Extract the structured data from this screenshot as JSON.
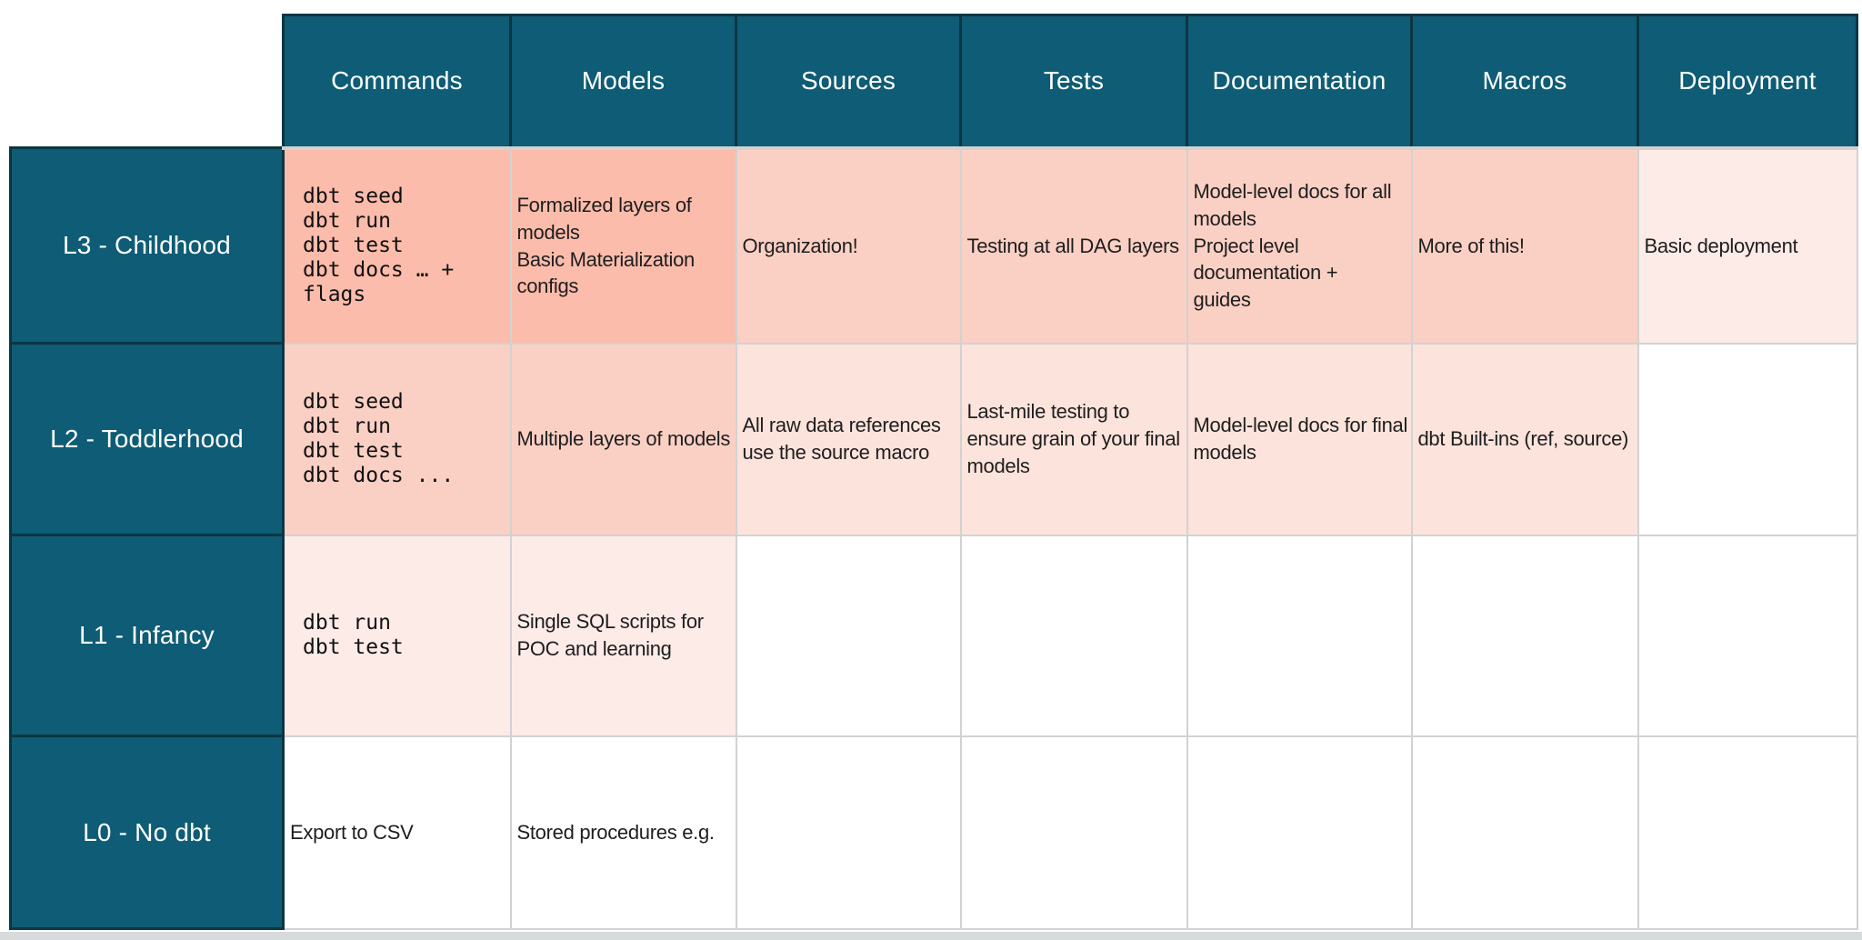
{
  "colors": {
    "teal": "#0e5c75",
    "teal_border": "#0b3642",
    "grid_line": "#d2d2d2",
    "pink_1": "#fbbcab",
    "pink_2": "#fbd0c4",
    "pink_3": "#fce3dc",
    "pink_4": "#fdebe7",
    "white": "#ffffff",
    "header_text": "#ffffff",
    "cell_text": "#1e1e1e"
  },
  "table": {
    "columns": [
      {
        "id": "commands",
        "label": "Commands"
      },
      {
        "id": "models",
        "label": "Models"
      },
      {
        "id": "sources",
        "label": "Sources"
      },
      {
        "id": "tests",
        "label": "Tests"
      },
      {
        "id": "documentation",
        "label": "Documentation"
      },
      {
        "id": "macros",
        "label": "Macros"
      },
      {
        "id": "deployment",
        "label": "Deployment"
      }
    ],
    "rows": [
      {
        "id": "l3",
        "label": "L3 - Childhood",
        "cells": [
          {
            "text": "dbt seed\ndbt run\ndbt test\ndbt docs … +\nflags",
            "mono": true,
            "tone": "pink_1"
          },
          {
            "text": "Formalized layers of\nmodels\nBasic Materialization\nconfigs",
            "mono": false,
            "tone": "pink_1"
          },
          {
            "text": "Organization!",
            "mono": false,
            "tone": "pink_2"
          },
          {
            "text": "Testing at all DAG layers",
            "mono": false,
            "tone": "pink_2"
          },
          {
            "text": "Model-level docs for all\nmodels\nProject level\ndocumentation +\nguides",
            "mono": false,
            "tone": "pink_2"
          },
          {
            "text": "More of this!",
            "mono": false,
            "tone": "pink_2"
          },
          {
            "text": "Basic deployment",
            "mono": false,
            "tone": "pink_4"
          }
        ]
      },
      {
        "id": "l2",
        "label": "L2 - Toddlerhood",
        "cells": [
          {
            "text": "dbt seed\ndbt run\ndbt test\ndbt docs ...",
            "mono": true,
            "tone": "pink_2"
          },
          {
            "text": "Multiple layers of models",
            "mono": false,
            "tone": "pink_2"
          },
          {
            "text": "All raw data references use the source macro",
            "mono": false,
            "tone": "pink_3"
          },
          {
            "text": "Last-mile testing to ensure grain of your final models",
            "mono": false,
            "tone": "pink_3"
          },
          {
            "text": "Model-level docs for final models",
            "mono": false,
            "tone": "pink_3"
          },
          {
            "text": "dbt Built-ins (ref, source)",
            "mono": false,
            "tone": "pink_3"
          },
          {
            "text": "",
            "mono": false,
            "tone": "white"
          }
        ]
      },
      {
        "id": "l1",
        "label": "L1 - Infancy",
        "cells": [
          {
            "text": "dbt run\ndbt test",
            "mono": true,
            "tone": "pink_4"
          },
          {
            "text": "Single SQL scripts for POC and learning",
            "mono": false,
            "tone": "pink_4"
          },
          {
            "text": "",
            "mono": false,
            "tone": "white"
          },
          {
            "text": "",
            "mono": false,
            "tone": "white"
          },
          {
            "text": "",
            "mono": false,
            "tone": "white"
          },
          {
            "text": "",
            "mono": false,
            "tone": "white"
          },
          {
            "text": "",
            "mono": false,
            "tone": "white"
          }
        ]
      },
      {
        "id": "l0",
        "label": "L0 - No dbt",
        "cells": [
          {
            "text": "Export to CSV",
            "mono": false,
            "tone": "white"
          },
          {
            "text": "Stored procedures e.g.",
            "mono": false,
            "tone": "white"
          },
          {
            "text": "",
            "mono": false,
            "tone": "white"
          },
          {
            "text": "",
            "mono": false,
            "tone": "white"
          },
          {
            "text": "",
            "mono": false,
            "tone": "white"
          },
          {
            "text": "",
            "mono": false,
            "tone": "white"
          },
          {
            "text": "",
            "mono": false,
            "tone": "white"
          }
        ]
      }
    ]
  }
}
